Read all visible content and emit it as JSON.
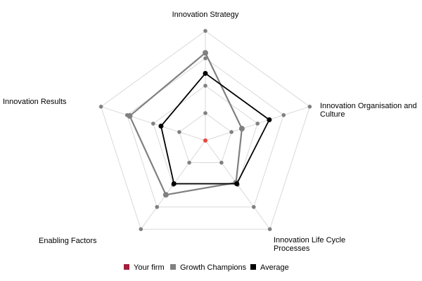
{
  "chart_data": {
    "type": "radar",
    "categories": [
      "Innovation Strategy",
      "Innovation Organisation and Culture",
      "Innovation Life Cycle Processes",
      "Enabling Factors",
      "Innovation Results"
    ],
    "range": [
      0,
      4
    ],
    "grid_levels": 4,
    "legend_placement": "bottom",
    "series": [
      {
        "name": "Your firm",
        "color": "#a0213c",
        "values": [
          0,
          0,
          0,
          0,
          0
        ]
      },
      {
        "name": "Growth Champions",
        "color": "#808080",
        "values": [
          3.2,
          1.4,
          1.9,
          2.45,
          2.9
        ]
      },
      {
        "name": "Average",
        "color": "#000000",
        "values": [
          2.45,
          2.45,
          1.95,
          1.95,
          1.7
        ]
      }
    ],
    "colors": {
      "grid": "#d9d9d9",
      "grid_marker": "#808080",
      "center_marker": "#e8483f"
    }
  }
}
